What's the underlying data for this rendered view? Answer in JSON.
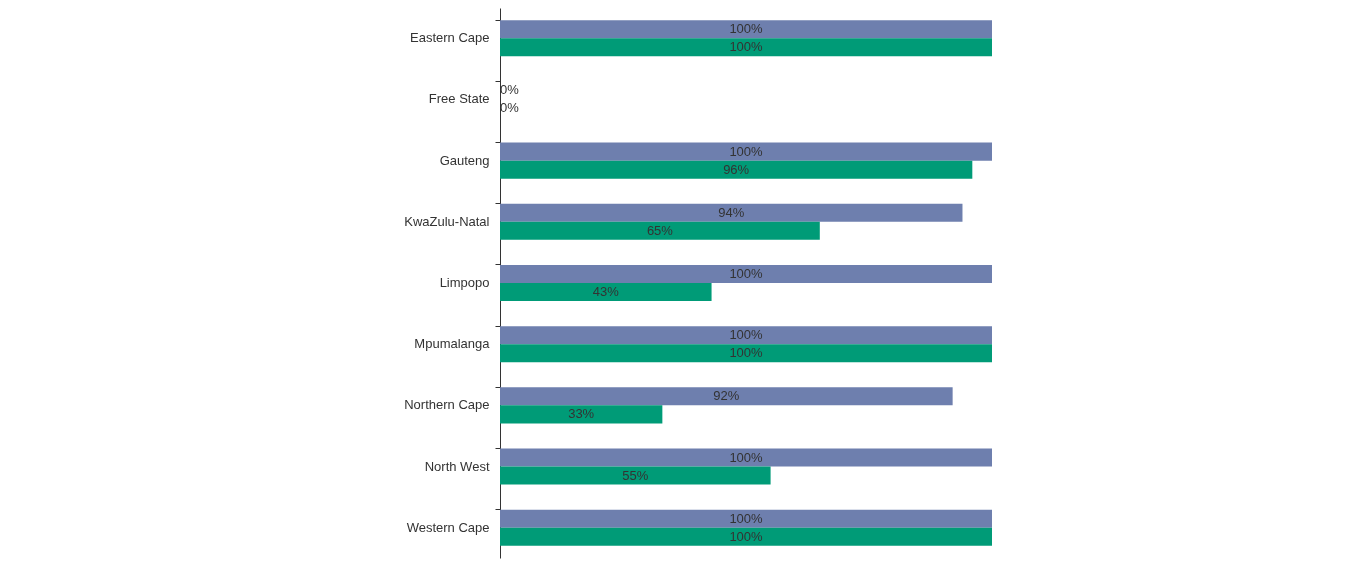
{
  "chart_data": {
    "type": "bar",
    "orientation": "horizontal",
    "categories": [
      "Eastern Cape",
      "Free State",
      "Gauteng",
      "KwaZulu-Natal",
      "Limpopo",
      "Mpumalanga",
      "Northern Cape",
      "North West",
      "Western Cape"
    ],
    "series": [
      {
        "color": "#6e7fae",
        "values": [
          100,
          0,
          100,
          94,
          100,
          100,
          92,
          100,
          100
        ],
        "value_labels": [
          "100%",
          "0%",
          "100%",
          "94%",
          "100%",
          "100%",
          "92%",
          "100%",
          "100%"
        ]
      },
      {
        "color": "#009b77",
        "values": [
          100,
          0,
          96,
          65,
          43,
          100,
          33,
          55,
          100
        ],
        "value_labels": [
          "100%",
          "0%",
          "96%",
          "65%",
          "43%",
          "100%",
          "33%",
          "55%",
          "100%"
        ]
      }
    ],
    "grid": false
  }
}
